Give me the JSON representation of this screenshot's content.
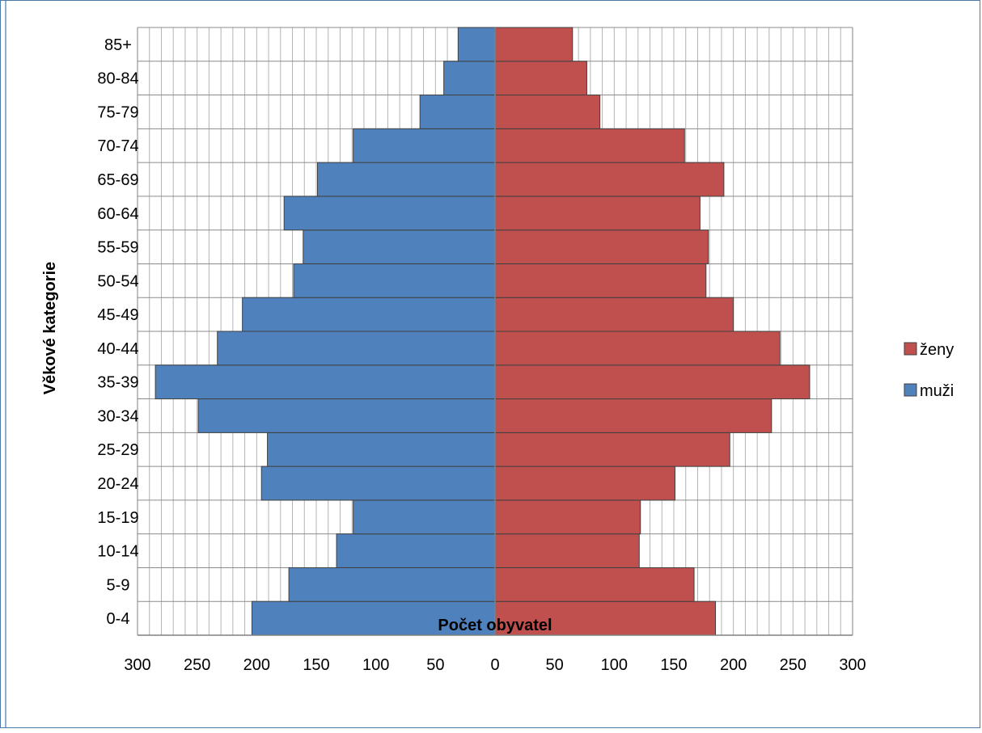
{
  "chart_data": {
    "type": "bar",
    "orientation": "horizontal",
    "layout": "population-pyramid",
    "title": "",
    "xlabel": "Počet obyvatel",
    "ylabel": "Věkové kategorie",
    "categories": [
      "0-4",
      "5-9",
      "10-14",
      "15-19",
      "20-24",
      "25-29",
      "30-34",
      "35-39",
      "40-44",
      "45-49",
      "50-54",
      "55-59",
      "60-64",
      "65-69",
      "70-74",
      "75-79",
      "80-84",
      "85+"
    ],
    "series": [
      {
        "name": "muži",
        "side": "left",
        "color": "#4f81bd",
        "values": [
          204,
          173,
          133,
          119,
          196,
          191,
          249,
          285,
          233,
          212,
          169,
          161,
          177,
          149,
          119,
          63,
          43,
          31
        ]
      },
      {
        "name": "ženy",
        "side": "right",
        "color": "#c0504d",
        "values": [
          185,
          167,
          121,
          122,
          151,
          197,
          232,
          264,
          239,
          200,
          177,
          179,
          172,
          192,
          159,
          88,
          77,
          65
        ]
      }
    ],
    "xlim": [
      -300,
      300
    ],
    "xticks": [
      "300",
      "250",
      "200",
      "150",
      "100",
      "50",
      "0",
      "50",
      "100",
      "150",
      "200",
      "250",
      "300"
    ],
    "grid": true,
    "legend": {
      "position": "right",
      "order": [
        "ženy",
        "muži"
      ]
    }
  }
}
